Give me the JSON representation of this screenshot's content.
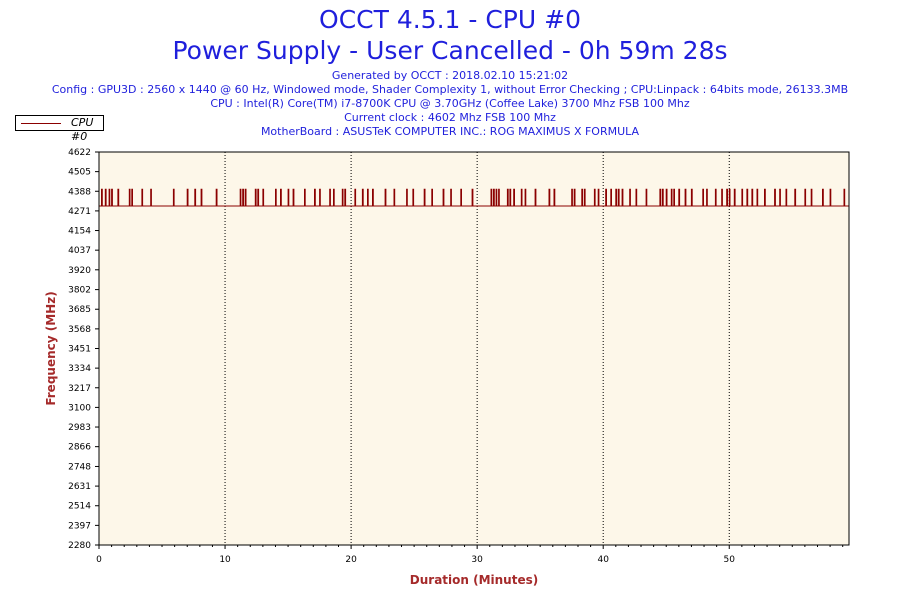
{
  "header": {
    "title": "OCCT 4.5.1 - CPU #0",
    "subtitle": "Power Supply - User Cancelled - 0h 59m 28s",
    "generated": "Generated by OCCT : 2018.02.10 15:21:02",
    "config": "Config : GPU3D : 2560 x 1440 @ 60 Hz, Windowed mode, Shader Complexity 1, without Error Checking ; CPU:Linpack : 64bits mode, 26133.3MB",
    "cpu": "CPU : Intel(R) Core(TM) i7-8700K CPU @ 3.70GHz (Coffee Lake) 3700 Mhz FSB 100 Mhz",
    "clock": "Current clock : 4602 Mhz FSB 100 Mhz",
    "motherboard": "MotherBoard : ASUSTeK COMPUTER INC.: ROG MAXIMUS X FORMULA"
  },
  "colors": {
    "title": "#1f1fdc",
    "series": "#8b0000",
    "plot_bg": "#fdf7e9",
    "axis_title": "#a52a2a"
  },
  "chart_data": {
    "type": "line",
    "xlabel": "Duration (Minutes)",
    "ylabel": "Frequency (MHz)",
    "xlim": [
      0,
      59.5
    ],
    "ylim": [
      2280,
      4622
    ],
    "x_ticks": [
      0,
      10,
      20,
      30,
      40,
      50
    ],
    "y_ticks": [
      2280,
      2397,
      2514,
      2631,
      2748,
      2866,
      2983,
      3100,
      3217,
      3334,
      3451,
      3568,
      3685,
      3802,
      3920,
      4037,
      4154,
      4271,
      4388,
      4505,
      4622
    ],
    "grid": "vertical dotted",
    "legend": "top-left",
    "series": [
      {
        "name": "CPU #0",
        "baseline": 4300,
        "peak": 4400,
        "spikes_at_minutes": [
          0.2,
          0.5,
          0.8,
          1.0,
          1.5,
          2.4,
          2.6,
          3.4,
          4.1,
          5.9,
          7.0,
          7.6,
          8.1,
          9.3,
          11.2,
          11.4,
          11.6,
          12.4,
          12.6,
          13.0,
          14.0,
          14.4,
          15.0,
          15.4,
          16.3,
          17.1,
          17.5,
          18.3,
          18.6,
          19.3,
          19.5,
          20.3,
          20.9,
          21.3,
          21.7,
          22.7,
          23.4,
          24.4,
          24.9,
          25.8,
          26.4,
          27.3,
          27.9,
          28.7,
          29.6,
          31.1,
          31.3,
          31.5,
          31.7,
          32.4,
          32.6,
          32.9,
          33.5,
          33.8,
          34.6,
          35.7,
          36.1,
          37.5,
          37.7,
          38.3,
          38.5,
          39.3,
          39.6,
          40.2,
          40.6,
          41.0,
          41.2,
          41.5,
          42.1,
          42.6,
          43.4,
          44.5,
          44.7,
          45.0,
          45.4,
          45.6,
          46.0,
          46.5,
          47.0,
          47.9,
          48.2,
          48.9,
          49.4,
          49.8,
          50.0,
          50.4,
          51.0,
          51.4,
          51.8,
          52.2,
          52.8,
          53.6,
          54.0,
          54.5,
          55.2,
          56.0,
          56.5,
          57.4,
          58.0,
          59.1
        ]
      }
    ]
  }
}
